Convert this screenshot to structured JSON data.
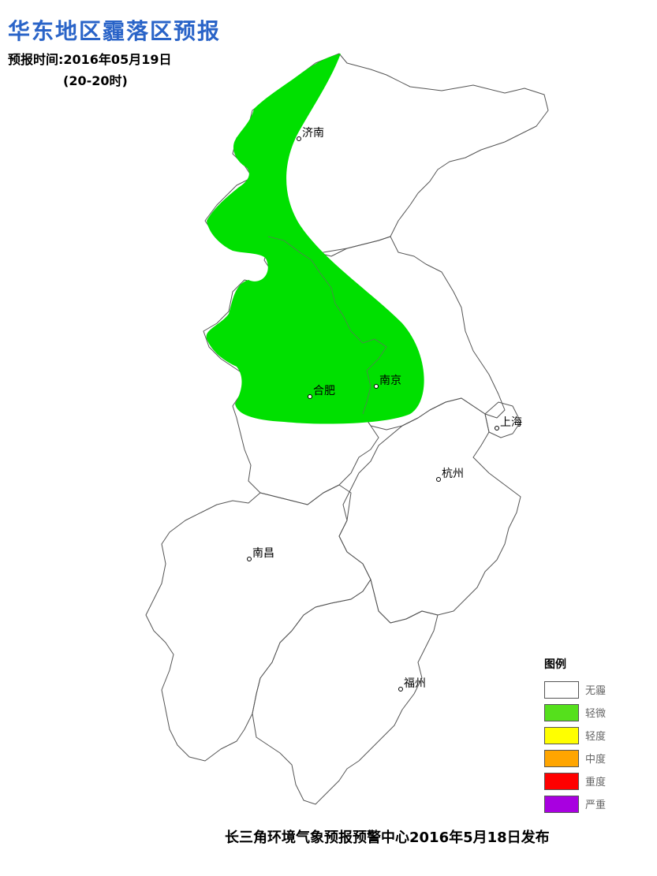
{
  "header": {
    "title": "华东地区霾落区预报",
    "subtitle": "预报时间:2016年05月19日",
    "period": "(20-20时)"
  },
  "footer": {
    "issuer": "长三角环境气象预报预警中心2016年5月18日发布"
  },
  "cities": [
    {
      "id": "jinan",
      "name": "济南"
    },
    {
      "id": "nanjing",
      "name": "南京"
    },
    {
      "id": "hefei",
      "name": "合肥"
    },
    {
      "id": "shanghai",
      "name": "上海"
    },
    {
      "id": "hangzhou",
      "name": "杭州"
    },
    {
      "id": "nanchang",
      "name": "南昌"
    },
    {
      "id": "fuzhou",
      "name": "福州"
    }
  ],
  "legend": {
    "title": "图例",
    "items": [
      {
        "label": "无霾",
        "color": "#ffffff"
      },
      {
        "label": "轻微",
        "color": "#55e01c"
      },
      {
        "label": "轻度",
        "color": "#ffff00"
      },
      {
        "label": "中度",
        "color": "#ffa500"
      },
      {
        "label": "重度",
        "color": "#ff0000"
      },
      {
        "label": "严重",
        "color": "#a800e0"
      }
    ]
  },
  "haze_area": {
    "level": "轻微",
    "color": "#00e000"
  }
}
